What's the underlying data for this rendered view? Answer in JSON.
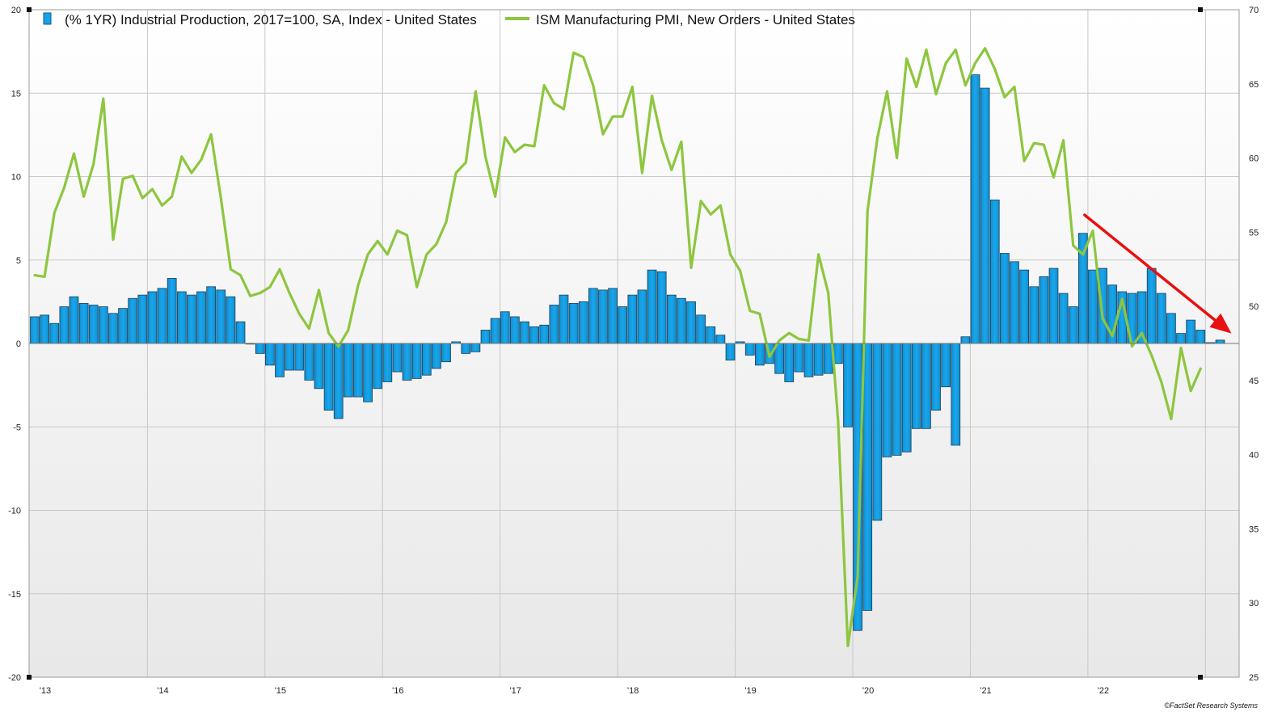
{
  "chart_data": {
    "type": "bar",
    "series": [
      {
        "name": "(% 1YR) Industrial Production, 2017=100, SA, Index - United States",
        "type": "bar",
        "axis": "left",
        "color": "#17a2e6",
        "values": [
          1.6,
          1.7,
          1.2,
          2.2,
          2.8,
          2.4,
          2.3,
          2.2,
          1.8,
          2.1,
          2.7,
          2.9,
          3.1,
          3.3,
          3.9,
          3.1,
          2.9,
          3.1,
          3.4,
          3.2,
          2.8,
          1.3,
          0.0,
          -0.6,
          -1.3,
          -2.0,
          -1.6,
          -1.6,
          -2.2,
          -2.7,
          -4.0,
          -4.5,
          -3.2,
          -3.2,
          -3.5,
          -2.7,
          -2.3,
          -1.7,
          -2.2,
          -2.1,
          -1.9,
          -1.5,
          -1.1,
          0.1,
          -0.6,
          -0.5,
          0.8,
          1.5,
          1.9,
          1.6,
          1.3,
          1.0,
          1.1,
          2.3,
          2.9,
          2.4,
          2.5,
          3.3,
          3.2,
          3.3,
          2.2,
          2.9,
          3.2,
          4.4,
          4.3,
          2.9,
          2.7,
          2.5,
          1.7,
          1.0,
          0.5,
          -1.0,
          0.1,
          -0.7,
          -1.3,
          -1.2,
          -1.8,
          -2.3,
          -1.7,
          -2.0,
          -1.9,
          -1.8,
          -1.2,
          -5.0,
          -17.2,
          -16.0,
          -10.6,
          -6.8,
          -6.7,
          -6.5,
          -5.1,
          -5.1,
          -4.0,
          -2.6,
          -6.1,
          0.4,
          16.1,
          15.3,
          8.6,
          5.4,
          4.9,
          4.4,
          3.4,
          4.0,
          4.5,
          3.0,
          2.2,
          6.6,
          4.4,
          4.5,
          3.5,
          3.1,
          3.0,
          3.1,
          4.5,
          3.0,
          1.8,
          0.6,
          1.4,
          0.8,
          0.05,
          0.2
        ],
        "ylim": [
          -20,
          20
        ]
      },
      {
        "name": "ISM Manufacturing PMI, New Orders - United States",
        "type": "line",
        "axis": "right",
        "color": "#8dc63f",
        "values": [
          52.1,
          52.0,
          56.3,
          58.0,
          60.3,
          57.4,
          59.6,
          64.0,
          54.5,
          58.6,
          58.8,
          57.3,
          57.9,
          56.8,
          57.4,
          60.1,
          59.0,
          59.9,
          61.6,
          57.3,
          52.5,
          52.1,
          50.7,
          50.9,
          51.3,
          52.5,
          50.9,
          49.5,
          48.5,
          51.1,
          48.2,
          47.3,
          48.4,
          51.4,
          53.5,
          54.4,
          53.5,
          55.1,
          54.8,
          51.3,
          53.5,
          54.2,
          55.7,
          59.0,
          59.7,
          64.5,
          60.1,
          57.4,
          61.4,
          60.4,
          60.9,
          60.8,
          64.9,
          63.7,
          63.3,
          67.1,
          66.8,
          64.9,
          61.6,
          62.8,
          62.8,
          64.8,
          59.0,
          64.2,
          61.2,
          59.2,
          61.1,
          52.6,
          57.1,
          56.2,
          56.8,
          53.5,
          52.4,
          49.7,
          49.5,
          46.6,
          47.7,
          48.2,
          47.8,
          47.7,
          53.5,
          50.9,
          42.3,
          27.1,
          31.8,
          56.4,
          61.3,
          64.5,
          60.0,
          66.7,
          64.8,
          67.3,
          64.3,
          66.4,
          67.3,
          64.9,
          66.4,
          67.4,
          66.0,
          64.1,
          64.8,
          59.8,
          61.0,
          60.9,
          58.7,
          61.2,
          54.1,
          53.5,
          55.1,
          49.2,
          48.0,
          50.5,
          47.3,
          48.2,
          46.7,
          44.9,
          42.4,
          47.2,
          44.3,
          45.8
        ],
        "ylim": [
          25,
          70
        ]
      }
    ],
    "x_axis": {
      "tick_labels": [
        "'13",
        "'14",
        "'15",
        "'16",
        "'17",
        "'18",
        "'19",
        "'20",
        "'21",
        "'22"
      ]
    },
    "left_axis": {
      "ylim": [
        -20,
        20
      ],
      "ticks": [
        -20,
        -15,
        -10,
        -5,
        0,
        5,
        10,
        15,
        20
      ]
    },
    "right_axis": {
      "ylim": [
        25,
        70
      ],
      "ticks": [
        25,
        30,
        35,
        40,
        45,
        50,
        55,
        60,
        65,
        70
      ]
    },
    "annotations": [
      {
        "kind": "arrow",
        "color": "#e81010",
        "meaning": "downward trend"
      }
    ],
    "legend": "top-left",
    "grid": true
  },
  "credit": "©FactSet Research Systems"
}
